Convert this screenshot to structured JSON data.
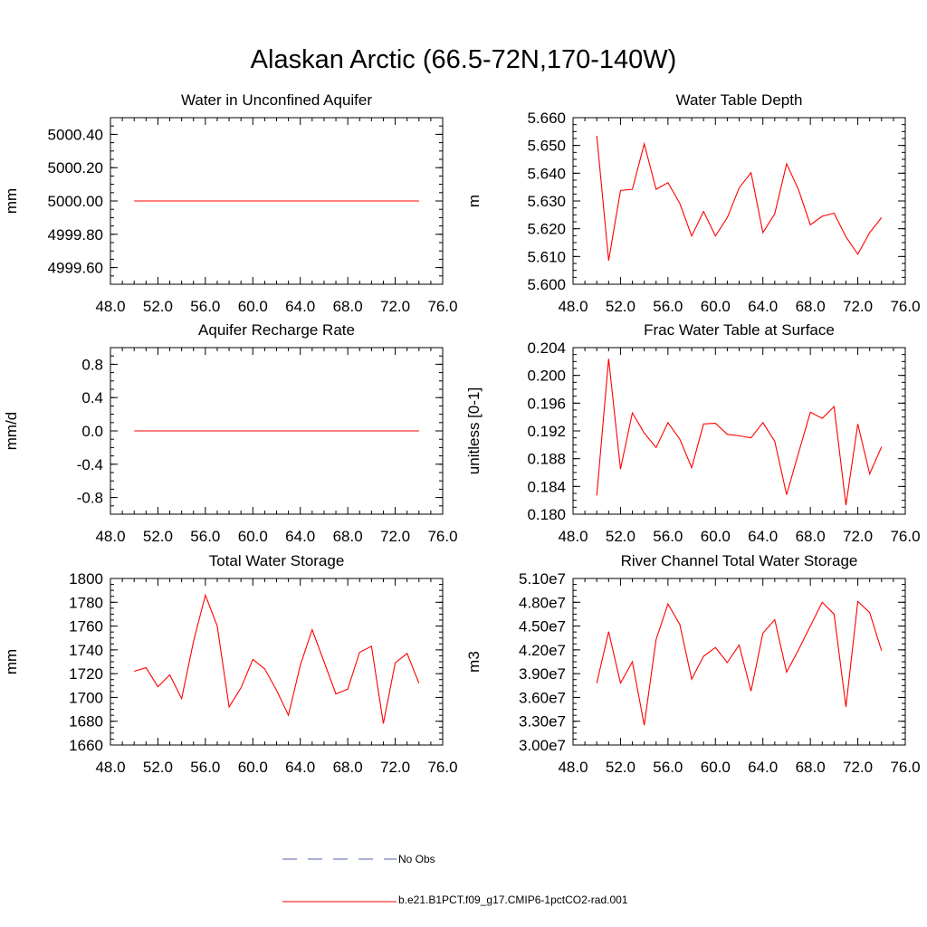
{
  "title": "Alaskan Arctic (66.5-72N,170-140W)",
  "legend": [
    {
      "label": "No Obs",
      "color": "#5566aa",
      "dash": true
    },
    {
      "label": "b.e21.B1PCT.f09_g17.CMIP6-1pctCO2-rad.001",
      "color": "#ff0000",
      "dash": false
    }
  ],
  "chart_data": [
    {
      "type": "line",
      "title": "Water in Unconfined Aquifer",
      "ylabel": "mm",
      "xlim": [
        48,
        76
      ],
      "ylim": [
        4999.5,
        5000.5
      ],
      "xticks": [
        "48.0",
        "52.0",
        "56.0",
        "60.0",
        "64.0",
        "68.0",
        "72.0",
        "76.0"
      ],
      "yticks": [
        {
          "v": 4999.6,
          "label": "4999.60"
        },
        {
          "v": 4999.8,
          "label": "4999.80"
        },
        {
          "v": 5000.0,
          "label": "5000.00"
        },
        {
          "v": 5000.2,
          "label": "5000.20"
        },
        {
          "v": 5000.4,
          "label": "5000.40"
        }
      ],
      "series": [
        {
          "color": "#ff0000",
          "x": [
            50,
            51,
            52,
            53,
            54,
            55,
            56,
            57,
            58,
            59,
            60,
            61,
            62,
            63,
            64,
            65,
            66,
            67,
            68,
            69,
            70,
            71,
            72,
            73,
            74
          ],
          "y": [
            5000,
            5000,
            5000,
            5000,
            5000,
            5000,
            5000,
            5000,
            5000,
            5000,
            5000,
            5000,
            5000,
            5000,
            5000,
            5000,
            5000,
            5000,
            5000,
            5000,
            5000,
            5000,
            5000,
            5000,
            5000
          ]
        }
      ]
    },
    {
      "type": "line",
      "title": "Water Table Depth",
      "ylabel": "m",
      "xlim": [
        48,
        76
      ],
      "ylim": [
        5.6,
        5.66
      ],
      "xticks": [
        "48.0",
        "52.0",
        "56.0",
        "60.0",
        "64.0",
        "68.0",
        "72.0",
        "76.0"
      ],
      "yticks": [
        {
          "v": 5.6,
          "label": "5.600"
        },
        {
          "v": 5.61,
          "label": "5.610"
        },
        {
          "v": 5.62,
          "label": "5.620"
        },
        {
          "v": 5.63,
          "label": "5.630"
        },
        {
          "v": 5.64,
          "label": "5.640"
        },
        {
          "v": 5.65,
          "label": "5.650"
        },
        {
          "v": 5.66,
          "label": "5.660"
        }
      ],
      "series": [
        {
          "color": "#ff0000",
          "x": [
            50,
            51,
            52,
            53,
            54,
            55,
            56,
            57,
            58,
            59,
            60,
            61,
            62,
            63,
            64,
            65,
            66,
            67,
            68,
            69,
            70,
            71,
            72,
            73,
            74
          ],
          "y": [
            5.6535,
            5.6085,
            5.6338,
            5.6342,
            5.6506,
            5.6342,
            5.6366,
            5.6291,
            5.6174,
            5.6262,
            5.6174,
            5.624,
            5.6347,
            5.6402,
            5.6186,
            5.6254,
            5.6434,
            5.6341,
            5.6214,
            5.6245,
            5.6256,
            5.6171,
            5.6108,
            5.6186,
            5.624
          ]
        }
      ]
    },
    {
      "type": "line",
      "title": "Aquifer Recharge Rate",
      "ylabel": "mm/d",
      "xlim": [
        48,
        76
      ],
      "ylim": [
        -1,
        1
      ],
      "xticks": [
        "48.0",
        "52.0",
        "56.0",
        "60.0",
        "64.0",
        "68.0",
        "72.0",
        "76.0"
      ],
      "yticks": [
        {
          "v": -0.8,
          "label": "-0.8"
        },
        {
          "v": -0.4,
          "label": "-0.4"
        },
        {
          "v": 0.0,
          "label": "0.0"
        },
        {
          "v": 0.4,
          "label": "0.4"
        },
        {
          "v": 0.8,
          "label": "0.8"
        }
      ],
      "series": [
        {
          "color": "#ff0000",
          "x": [
            50,
            51,
            52,
            53,
            54,
            55,
            56,
            57,
            58,
            59,
            60,
            61,
            62,
            63,
            64,
            65,
            66,
            67,
            68,
            69,
            70,
            71,
            72,
            73,
            74
          ],
          "y": [
            0,
            0,
            0,
            0,
            0,
            0,
            0,
            0,
            0,
            0,
            0,
            0,
            0,
            0,
            0,
            0,
            0,
            0,
            0,
            0,
            0,
            0,
            0,
            0,
            0
          ]
        }
      ]
    },
    {
      "type": "line",
      "title": "Frac Water Table at Surface",
      "ylabel": "unitless [0-1]",
      "xlim": [
        48,
        76
      ],
      "ylim": [
        0.18,
        0.204
      ],
      "xticks": [
        "48.0",
        "52.0",
        "56.0",
        "60.0",
        "64.0",
        "68.0",
        "72.0",
        "76.0"
      ],
      "yticks": [
        {
          "v": 0.18,
          "label": "0.180"
        },
        {
          "v": 0.184,
          "label": "0.184"
        },
        {
          "v": 0.188,
          "label": "0.188"
        },
        {
          "v": 0.192,
          "label": "0.192"
        },
        {
          "v": 0.196,
          "label": "0.196"
        },
        {
          "v": 0.2,
          "label": "0.200"
        },
        {
          "v": 0.204,
          "label": "0.204"
        }
      ],
      "series": [
        {
          "color": "#ff0000",
          "x": [
            50,
            51,
            52,
            53,
            54,
            55,
            56,
            57,
            58,
            59,
            60,
            61,
            62,
            63,
            64,
            65,
            66,
            67,
            68,
            69,
            70,
            71,
            72,
            73,
            74
          ],
          "y": [
            0.1827,
            0.2024,
            0.1865,
            0.1946,
            0.1917,
            0.1896,
            0.1932,
            0.1908,
            0.1867,
            0.193,
            0.1931,
            0.1915,
            0.1913,
            0.191,
            0.1932,
            0.1905,
            0.1828,
            0.1888,
            0.1947,
            0.1938,
            0.1955,
            0.1813,
            0.193,
            0.1858,
            0.1897
          ]
        }
      ]
    },
    {
      "type": "line",
      "title": "Total Water Storage",
      "ylabel": "mm",
      "xlim": [
        48,
        76
      ],
      "ylim": [
        1660,
        1800
      ],
      "xticks": [
        "48.0",
        "52.0",
        "56.0",
        "60.0",
        "64.0",
        "68.0",
        "72.0",
        "76.0"
      ],
      "yticks": [
        {
          "v": 1660,
          "label": "1660"
        },
        {
          "v": 1680,
          "label": "1680"
        },
        {
          "v": 1700,
          "label": "1700"
        },
        {
          "v": 1720,
          "label": "1720"
        },
        {
          "v": 1740,
          "label": "1740"
        },
        {
          "v": 1760,
          "label": "1760"
        },
        {
          "v": 1780,
          "label": "1780"
        },
        {
          "v": 1800,
          "label": "1800"
        }
      ],
      "series": [
        {
          "color": "#ff0000",
          "x": [
            50,
            51,
            52,
            53,
            54,
            55,
            56,
            57,
            58,
            59,
            60,
            61,
            62,
            63,
            64,
            65,
            66,
            67,
            68,
            69,
            70,
            71,
            72,
            73,
            74
          ],
          "y": [
            1722,
            1725,
            1709,
            1719,
            1699,
            1747,
            1786,
            1760,
            1692,
            1708,
            1732,
            1724,
            1706,
            1685,
            1727,
            1757,
            1730,
            1703,
            1707,
            1738,
            1743,
            1678,
            1729,
            1737,
            1712
          ]
        }
      ]
    },
    {
      "type": "line",
      "title": "River Channel Total Water Storage",
      "ylabel": "m3",
      "xlim": [
        48,
        76
      ],
      "ylim": [
        30000000,
        51000000
      ],
      "xticks": [
        "48.0",
        "52.0",
        "56.0",
        "60.0",
        "64.0",
        "68.0",
        "72.0",
        "76.0"
      ],
      "yticks": [
        {
          "v": 30000000,
          "label": "3.00e7"
        },
        {
          "v": 33000000,
          "label": "3.30e7"
        },
        {
          "v": 36000000,
          "label": "3.60e7"
        },
        {
          "v": 39000000,
          "label": "3.90e7"
        },
        {
          "v": 42000000,
          "label": "4.20e7"
        },
        {
          "v": 45000000,
          "label": "4.50e7"
        },
        {
          "v": 48000000,
          "label": "4.80e7"
        },
        {
          "v": 51000000,
          "label": "5.10e7"
        }
      ],
      "series": [
        {
          "color": "#ff0000",
          "x": [
            50,
            51,
            52,
            53,
            54,
            55,
            56,
            57,
            58,
            59,
            60,
            61,
            62,
            63,
            64,
            65,
            66,
            67,
            68,
            69,
            70,
            71,
            72,
            73,
            74
          ],
          "y": [
            37800000,
            44300000,
            37800000,
            40500000,
            32500000,
            43300000,
            47800000,
            45200000,
            38300000,
            41200000,
            42300000,
            40400000,
            42600000,
            36800000,
            44100000,
            45800000,
            39200000,
            42000000,
            45000000,
            48000000,
            46500000,
            34800000,
            48100000,
            46700000,
            41900000
          ]
        }
      ]
    }
  ]
}
